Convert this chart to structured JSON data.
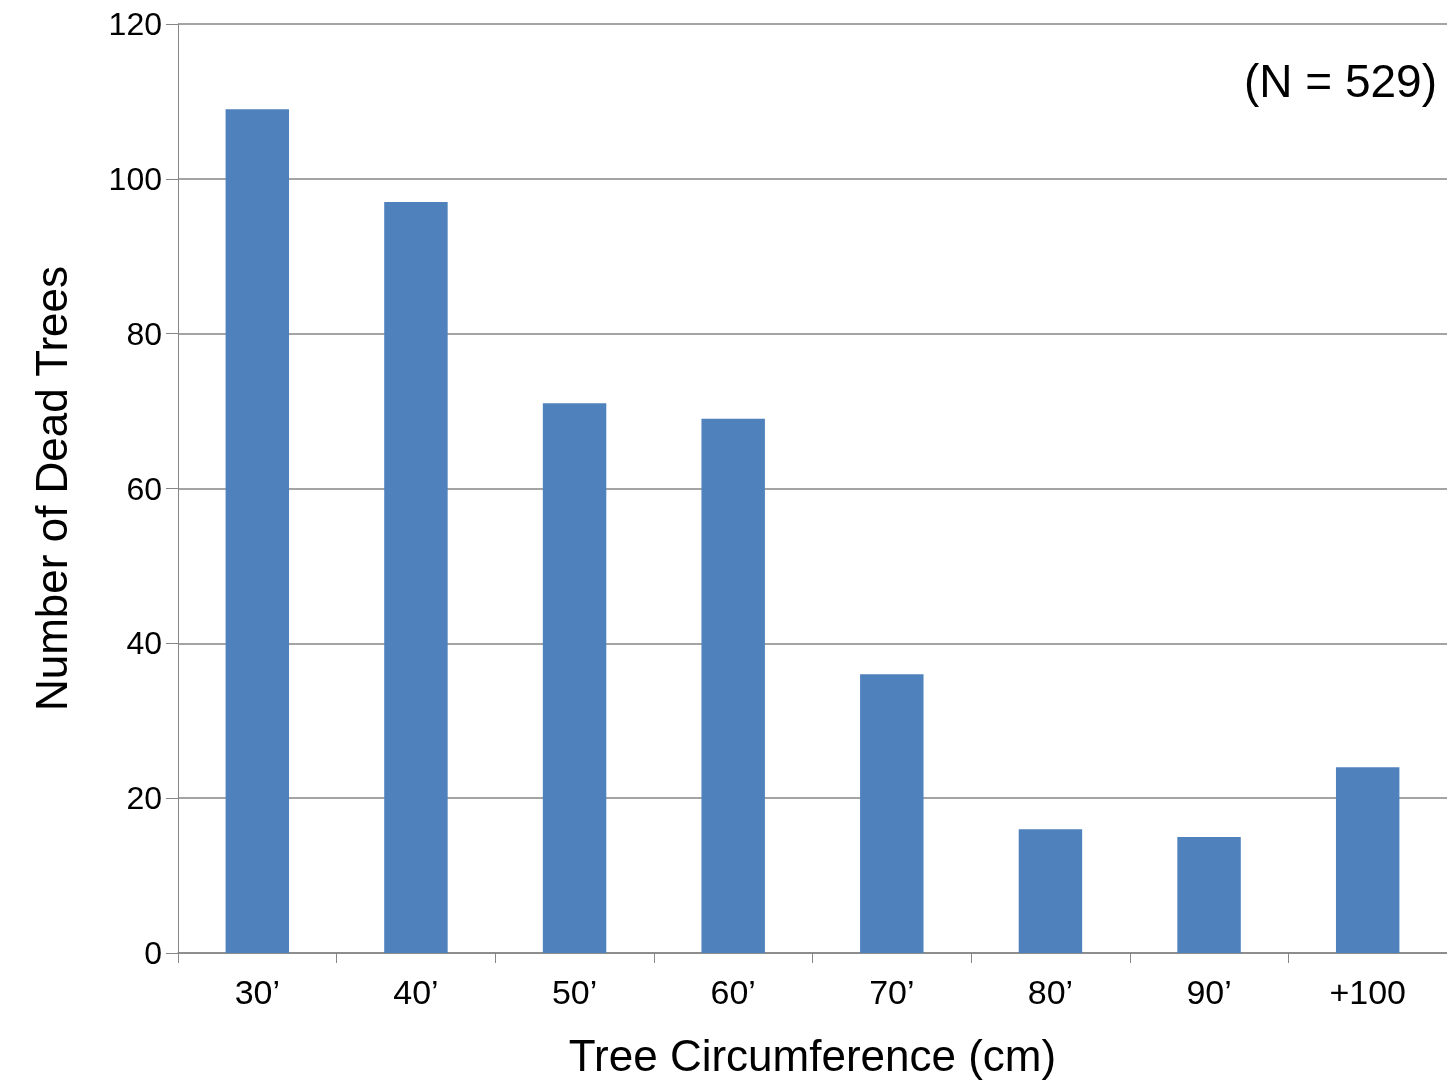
{
  "chart_data": {
    "type": "bar",
    "xlabel": "Tree Circumference (cm)",
    "ylabel": "Number of Dead Trees",
    "categories": [
      "30’",
      "40’",
      "50’",
      "60’",
      "70’",
      "80’",
      "90’",
      "+100"
    ],
    "values": [
      109,
      97,
      71,
      69,
      36,
      16,
      15,
      24
    ],
    "color": "#4f81bd",
    "ylim": [
      0,
      120
    ],
    "yticks": [
      0,
      20,
      40,
      60,
      80,
      100,
      120
    ],
    "grid": "y",
    "annotations": [
      "(N = 529)"
    ]
  }
}
